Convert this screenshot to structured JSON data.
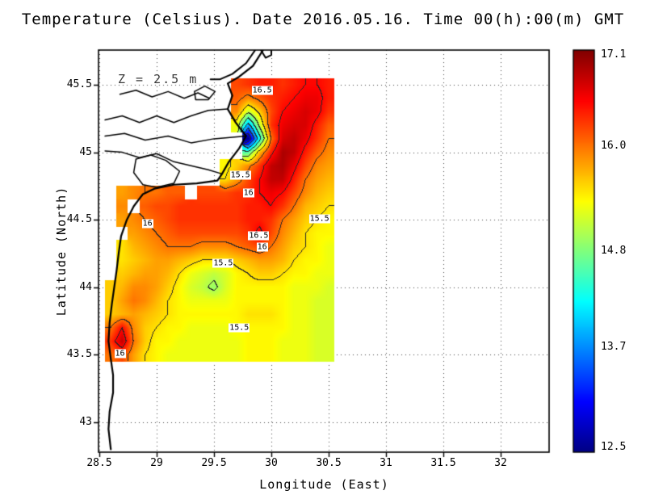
{
  "title": "Temperature (Celsius). Date 2016.05.16. Time 00(h):00(m) GMT",
  "annotation": "Z = 2.5 m",
  "axes": {
    "xlabel": "Longitude (East)",
    "ylabel": "Latitude (North)",
    "x_ticks": [
      "28.5",
      "29",
      "29.5",
      "30",
      "30.5",
      "31",
      "31.5",
      "32"
    ],
    "y_ticks": [
      "43",
      "43.5",
      "44",
      "44.5",
      "45",
      "45.5"
    ]
  },
  "colorbar": {
    "labels": [
      "17.1",
      "16.0",
      "14.8",
      "13.7",
      "12.5"
    ]
  },
  "chart_data": {
    "type": "heatmap",
    "title": "Temperature (Celsius). Date 2016.05.16. Time 00(h):00(m) GMT",
    "xlabel": "Longitude (East)",
    "ylabel": "Latitude (North)",
    "units": "Celsius",
    "depth_annotation": "Z = 2.5 m",
    "xlim": [
      28.49,
      32.43
    ],
    "ylim": [
      42.78,
      45.76
    ],
    "x_ticks": [
      28.5,
      29,
      29.5,
      30,
      30.5,
      31,
      31.5,
      32
    ],
    "y_ticks": [
      43,
      43.5,
      44,
      44.5,
      45,
      45.5
    ],
    "colormap": "jet",
    "color_range": [
      12.5,
      17.1
    ],
    "colorbar_labels": [
      17.1,
      16.0,
      14.8,
      13.7,
      12.5
    ],
    "contour_interval": 0.5,
    "x": [
      28.6,
      28.7,
      28.8,
      28.9,
      29.0,
      29.1,
      29.2,
      29.3,
      29.4,
      29.5,
      29.6,
      29.7,
      29.8,
      29.9,
      30.0,
      30.1,
      30.2,
      30.3,
      30.4,
      30.5
    ],
    "y": [
      45.5,
      45.4,
      45.3,
      45.2,
      45.1,
      45.0,
      44.9,
      44.8,
      44.7,
      44.6,
      44.5,
      44.4,
      44.3,
      44.2,
      44.1,
      44.0,
      43.9,
      43.8,
      43.7,
      43.6,
      43.5
    ],
    "values": [
      [
        null,
        null,
        null,
        null,
        null,
        null,
        null,
        null,
        null,
        null,
        null,
        16.2,
        16.3,
        16.4,
        16.4,
        16.3,
        16.4,
        16.5,
        16.5,
        16.4
      ],
      [
        null,
        null,
        null,
        null,
        null,
        null,
        null,
        null,
        null,
        null,
        null,
        16.1,
        15.9,
        16.1,
        16.3,
        16.4,
        16.5,
        16.6,
        16.6,
        16.4
      ],
      [
        null,
        null,
        null,
        null,
        null,
        null,
        null,
        null,
        null,
        null,
        null,
        15.9,
        15.1,
        15.6,
        16.2,
        16.5,
        16.6,
        16.7,
        16.6,
        16.3
      ],
      [
        null,
        null,
        null,
        null,
        null,
        null,
        null,
        null,
        null,
        null,
        null,
        15.3,
        13.8,
        15.1,
        16.3,
        16.6,
        16.7,
        16.7,
        16.4,
        16.1
      ],
      [
        null,
        null,
        null,
        null,
        null,
        null,
        null,
        null,
        null,
        null,
        null,
        null,
        12.5,
        14.3,
        16.0,
        16.7,
        16.8,
        16.6,
        16.3,
        16.0
      ],
      [
        null,
        null,
        null,
        null,
        null,
        null,
        null,
        null,
        null,
        null,
        null,
        null,
        14.6,
        15.7,
        16.4,
        16.9,
        16.8,
        16.4,
        16.1,
        15.9
      ],
      [
        null,
        null,
        null,
        null,
        null,
        null,
        null,
        null,
        null,
        null,
        15.4,
        15.6,
        15.9,
        16.3,
        16.8,
        16.9,
        16.6,
        16.2,
        15.9,
        15.8
      ],
      [
        null,
        null,
        null,
        null,
        null,
        null,
        null,
        null,
        null,
        null,
        15.5,
        15.8,
        16.2,
        16.5,
        16.8,
        16.8,
        16.4,
        16.0,
        15.8,
        15.7
      ],
      [
        null,
        15.8,
        15.9,
        16.0,
        16.0,
        16.1,
        16.1,
        null,
        16.2,
        16.2,
        16.2,
        16.3,
        16.3,
        16.5,
        16.6,
        16.5,
        16.2,
        15.9,
        15.7,
        15.6
      ],
      [
        null,
        15.9,
        null,
        16.1,
        16.2,
        16.2,
        16.3,
        16.3,
        16.3,
        16.3,
        16.3,
        16.3,
        16.4,
        16.4,
        16.5,
        16.3,
        16.0,
        15.7,
        15.6,
        15.5
      ],
      [
        null,
        15.8,
        15.9,
        16.0,
        16.1,
        16.2,
        16.3,
        16.3,
        16.3,
        16.3,
        16.3,
        16.3,
        16.4,
        16.4,
        16.3,
        16.0,
        15.8,
        15.6,
        15.5,
        15.4
      ],
      [
        null,
        null,
        15.8,
        15.9,
        16.0,
        16.1,
        16.2,
        16.2,
        16.2,
        16.2,
        16.2,
        16.2,
        16.3,
        16.6,
        16.2,
        15.9,
        15.7,
        15.5,
        15.4,
        15.4
      ],
      [
        null,
        15.5,
        15.7,
        15.8,
        15.9,
        16.0,
        16.0,
        16.0,
        15.9,
        15.9,
        15.9,
        16.0,
        16.1,
        16.2,
        16.0,
        15.8,
        15.6,
        15.5,
        15.4,
        15.3
      ],
      [
        null,
        15.5,
        15.6,
        15.7,
        15.8,
        15.8,
        15.7,
        15.6,
        15.5,
        15.5,
        15.5,
        15.6,
        15.7,
        15.8,
        15.8,
        15.7,
        15.5,
        15.4,
        15.4,
        15.3
      ],
      [
        null,
        15.6,
        15.7,
        15.8,
        15.8,
        15.7,
        15.5,
        15.3,
        15.2,
        15.1,
        15.2,
        15.4,
        15.5,
        15.6,
        15.6,
        15.5,
        15.4,
        15.4,
        15.3,
        15.3
      ],
      [
        15.6,
        15.7,
        15.9,
        15.9,
        15.8,
        15.6,
        15.4,
        15.2,
        15.1,
        14.9,
        15.2,
        15.4,
        15.4,
        15.4,
        15.4,
        15.4,
        15.3,
        15.3,
        15.3,
        15.2
      ],
      [
        15.6,
        15.8,
        16.0,
        15.9,
        15.7,
        15.5,
        15.4,
        15.3,
        15.3,
        15.3,
        15.3,
        15.4,
        15.4,
        15.4,
        15.4,
        15.4,
        15.3,
        15.3,
        15.2,
        15.2
      ],
      [
        15.6,
        15.7,
        15.8,
        15.7,
        15.6,
        15.5,
        15.4,
        15.4,
        15.4,
        15.4,
        15.4,
        15.4,
        15.5,
        15.5,
        15.5,
        15.4,
        15.3,
        15.3,
        15.2,
        15.2
      ],
      [
        16.0,
        16.5,
        15.9,
        15.6,
        15.5,
        15.4,
        15.4,
        15.3,
        15.3,
        15.3,
        15.3,
        15.4,
        15.4,
        15.4,
        15.4,
        15.4,
        15.3,
        15.3,
        15.2,
        15.2
      ],
      [
        16.3,
        16.8,
        16.0,
        15.6,
        15.4,
        15.4,
        15.3,
        15.3,
        15.3,
        15.3,
        15.3,
        15.3,
        15.4,
        15.4,
        15.4,
        15.3,
        15.3,
        15.3,
        15.2,
        15.2
      ],
      [
        16.0,
        16.2,
        15.8,
        15.5,
        15.4,
        15.3,
        15.3,
        15.3,
        15.3,
        15.3,
        15.3,
        15.3,
        15.4,
        15.4,
        15.4,
        15.3,
        15.3,
        15.3,
        15.2,
        15.2
      ]
    ],
    "contour_labels": [
      {
        "text": "16.5",
        "lon": 29.92,
        "lat": 45.46
      },
      {
        "text": "15.5",
        "lon": 29.73,
        "lat": 44.83
      },
      {
        "text": "16",
        "lon": 29.8,
        "lat": 44.7
      },
      {
        "text": "16",
        "lon": 28.92,
        "lat": 44.47
      },
      {
        "text": "16.5",
        "lon": 29.89,
        "lat": 44.38
      },
      {
        "text": "16",
        "lon": 29.92,
        "lat": 44.3
      },
      {
        "text": "15.5",
        "lon": 30.42,
        "lat": 44.51
      },
      {
        "text": "15.5",
        "lon": 29.58,
        "lat": 44.18
      },
      {
        "text": "15.5",
        "lon": 29.72,
        "lat": 43.7
      },
      {
        "text": "16",
        "lon": 28.68,
        "lat": 43.51
      }
    ],
    "coastlines": [
      {
        "name": "main-coast",
        "width": 2.2,
        "points": [
          [
            29.93,
            45.76
          ],
          [
            29.84,
            45.64
          ],
          [
            29.72,
            45.56
          ],
          [
            29.62,
            45.51
          ],
          [
            29.66,
            45.42
          ],
          [
            29.62,
            45.32
          ],
          [
            29.69,
            45.22
          ],
          [
            29.78,
            45.12
          ],
          [
            29.72,
            45.03
          ],
          [
            29.63,
            44.93
          ],
          [
            29.57,
            44.84
          ],
          [
            29.53,
            44.79
          ],
          [
            29.35,
            44.77
          ],
          [
            29.15,
            44.76
          ],
          [
            28.98,
            44.73
          ],
          [
            28.88,
            44.69
          ],
          [
            28.8,
            44.6
          ],
          [
            28.74,
            44.5
          ],
          [
            28.69,
            44.38
          ],
          [
            28.67,
            44.26
          ],
          [
            28.65,
            44.12
          ],
          [
            28.63,
            44.0
          ],
          [
            28.61,
            43.88
          ],
          [
            28.59,
            43.74
          ],
          [
            28.58,
            43.6
          ],
          [
            28.6,
            43.47
          ],
          [
            28.62,
            43.35
          ],
          [
            28.62,
            43.22
          ],
          [
            28.59,
            43.08
          ],
          [
            28.58,
            42.95
          ],
          [
            28.6,
            42.8
          ]
        ]
      },
      {
        "name": "spit",
        "width": 2.0,
        "points": [
          [
            29.87,
            45.77
          ],
          [
            29.78,
            45.66
          ],
          [
            29.66,
            45.58
          ],
          [
            29.55,
            45.54
          ],
          [
            29.47,
            45.54
          ]
        ]
      },
      {
        "name": "spit-hook",
        "width": 2.0,
        "points": [
          [
            29.9,
            45.77
          ],
          [
            29.95,
            45.7
          ],
          [
            30.0,
            45.72
          ],
          [
            30.0,
            45.77
          ]
        ]
      },
      {
        "name": "danube-branch-north",
        "width": 1.5,
        "points": [
          [
            28.55,
            45.24
          ],
          [
            28.7,
            45.27
          ],
          [
            28.85,
            45.22
          ],
          [
            29.0,
            45.27
          ],
          [
            29.15,
            45.22
          ],
          [
            29.3,
            45.27
          ],
          [
            29.45,
            45.31
          ],
          [
            29.62,
            45.32
          ]
        ]
      },
      {
        "name": "danube-branch-mid",
        "width": 1.5,
        "points": [
          [
            28.55,
            45.12
          ],
          [
            28.72,
            45.14
          ],
          [
            28.9,
            45.09
          ],
          [
            29.1,
            45.12
          ],
          [
            29.3,
            45.07
          ],
          [
            29.5,
            45.1
          ],
          [
            29.78,
            45.12
          ]
        ]
      },
      {
        "name": "danube-branch-south",
        "width": 1.5,
        "points": [
          [
            28.55,
            45.01
          ],
          [
            28.7,
            45.0
          ],
          [
            28.85,
            44.96
          ],
          [
            29.0,
            44.99
          ],
          [
            29.15,
            44.93
          ],
          [
            29.3,
            44.9
          ],
          [
            29.45,
            44.87
          ],
          [
            29.57,
            44.84
          ]
        ]
      },
      {
        "name": "delta-lakes",
        "width": 1.5,
        "points": [
          [
            28.68,
            45.43
          ],
          [
            28.82,
            45.46
          ],
          [
            28.96,
            45.41
          ],
          [
            29.1,
            45.45
          ],
          [
            29.24,
            45.4
          ],
          [
            29.36,
            45.44
          ],
          [
            29.46,
            45.4
          ]
        ]
      },
      {
        "name": "lagoon",
        "width": 1.5,
        "points": [
          [
            28.82,
            44.95
          ],
          [
            28.95,
            44.98
          ],
          [
            29.08,
            44.94
          ],
          [
            29.2,
            44.86
          ],
          [
            29.15,
            44.77
          ],
          [
            29.0,
            44.74
          ],
          [
            28.88,
            44.76
          ],
          [
            28.8,
            44.85
          ],
          [
            28.82,
            44.95
          ]
        ]
      },
      {
        "name": "small-lake",
        "width": 1.5,
        "points": [
          [
            29.33,
            45.45
          ],
          [
            29.42,
            45.49
          ],
          [
            29.51,
            45.45
          ],
          [
            29.45,
            45.39
          ],
          [
            29.34,
            45.39
          ],
          [
            29.33,
            45.45
          ]
        ]
      }
    ]
  }
}
